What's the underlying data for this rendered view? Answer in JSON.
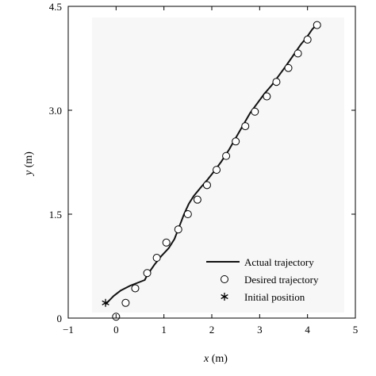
{
  "chart_data": {
    "type": "line",
    "title": "",
    "xlabel_var": "x",
    "xlabel_unit": " (m)",
    "ylabel_var": "y",
    "ylabel_unit": " (m)",
    "xlim": [
      -1,
      5
    ],
    "ylim": [
      0,
      4.5
    ],
    "xticks": [
      -1,
      0,
      1,
      2,
      3,
      4,
      5
    ],
    "xtick_labels": [
      "−1",
      "0",
      "1",
      "2",
      "3",
      "4",
      "5"
    ],
    "yticks": [
      0,
      1.5,
      3.0,
      4.5
    ],
    "ytick_labels": [
      "0",
      "1.5",
      "3.0",
      "4.5"
    ],
    "grid": false,
    "legend_position": "bottom-right",
    "series": [
      {
        "name": "Actual trajectory",
        "style": "line",
        "x": [
          -0.22,
          -0.05,
          0.1,
          0.3,
          0.45,
          0.6,
          0.65,
          0.8,
          0.95,
          1.1,
          1.22,
          1.32,
          1.42,
          1.52,
          1.62,
          1.75,
          1.9,
          2.05,
          2.2,
          2.35,
          2.5,
          2.65,
          2.8,
          2.95,
          3.1,
          3.25,
          3.4,
          3.55,
          3.7,
          3.85,
          4.0,
          4.1,
          4.2
        ],
        "y": [
          0.2,
          0.32,
          0.4,
          0.47,
          0.51,
          0.55,
          0.62,
          0.77,
          0.9,
          1.01,
          1.14,
          1.32,
          1.5,
          1.65,
          1.76,
          1.87,
          1.99,
          2.12,
          2.26,
          2.42,
          2.6,
          2.78,
          2.96,
          3.1,
          3.24,
          3.36,
          3.5,
          3.64,
          3.79,
          3.94,
          4.07,
          4.17,
          4.24
        ]
      },
      {
        "name": "Desired trajectory",
        "style": "open-circle",
        "x": [
          0.0,
          0.2,
          0.4,
          0.65,
          0.85,
          1.05,
          1.3,
          1.5,
          1.7,
          1.9,
          2.1,
          2.3,
          2.5,
          2.7,
          2.9,
          3.15,
          3.35,
          3.6,
          3.8,
          4.0,
          4.2
        ],
        "y": [
          0.02,
          0.22,
          0.43,
          0.65,
          0.87,
          1.09,
          1.28,
          1.5,
          1.71,
          1.92,
          2.14,
          2.34,
          2.55,
          2.77,
          2.98,
          3.2,
          3.41,
          3.61,
          3.82,
          4.02,
          4.23
        ]
      },
      {
        "name": "Initial position",
        "style": "asterisk",
        "x": [
          -0.22
        ],
        "y": [
          0.22
        ]
      }
    ],
    "legend": [
      {
        "label": "Actual trajectory",
        "symbol": "line"
      },
      {
        "label": "Desired trajectory",
        "symbol": "open-circle"
      },
      {
        "label": "Initial position",
        "symbol": "asterisk"
      }
    ]
  }
}
